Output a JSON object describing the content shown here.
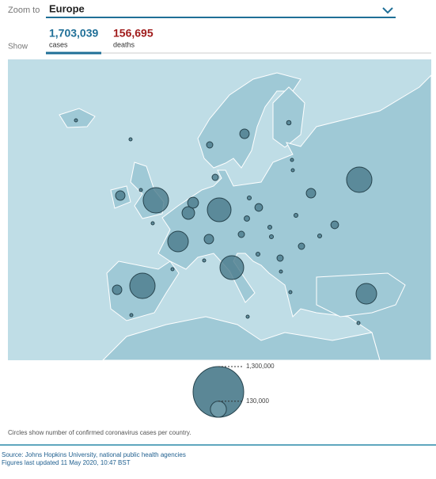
{
  "zoom": {
    "label": "Zoom to",
    "value": "Europe"
  },
  "show": {
    "label": "Show",
    "tabs": [
      {
        "value": "1,703,039",
        "label": "cases"
      },
      {
        "value": "156,695",
        "label": "deaths"
      }
    ]
  },
  "map": {
    "bubbles": [
      325000,
      325000,
      325000,
      215000,
      285000,
      285000,
      215000,
      80000,
      60000,
      45000,
      45000,
      45000,
      45000,
      45000,
      30000,
      30000,
      20000,
      20000,
      20000,
      20000,
      15000,
      20000,
      10000,
      8000,
      8000,
      8000,
      8000,
      8000,
      8000,
      5000,
      5000,
      5000,
      5000,
      5000,
      5000,
      5000,
      5000,
      5000,
      5000,
      5000,
      5000,
      5000
    ]
  },
  "legend": {
    "values": [
      {
        "value": 1300000,
        "label": "1,300,000"
      },
      {
        "value": 130000,
        "label": "130,000"
      }
    ]
  },
  "caption": "Circles show number of confirmed coronavirus cases per country.",
  "footer": {
    "source": "Source: Johns Hopkins University, national public health agencies",
    "updated": "Figures last updated 11 May 2020, 10:47 BST"
  }
}
